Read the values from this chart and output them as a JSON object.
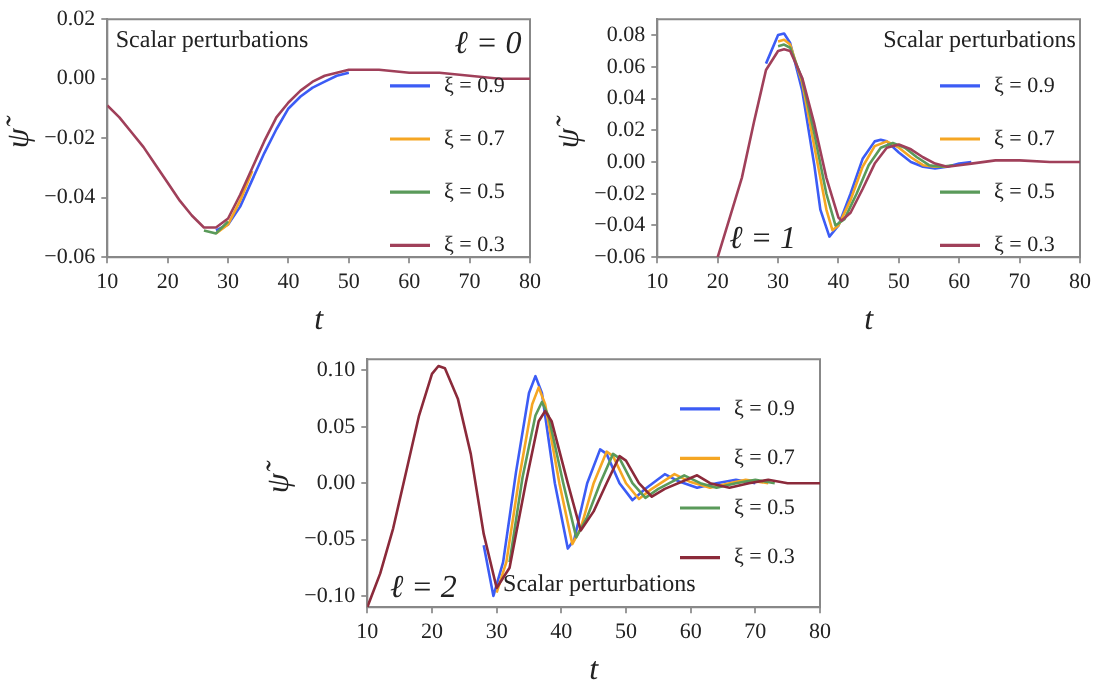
{
  "chart_data": [
    {
      "type": "line",
      "xlabel": "t",
      "ylabel": "ψ̃",
      "annotations": [
        "Scalar perturbations",
        "ℓ = 0"
      ],
      "legend": "right",
      "grid": false,
      "xlim": [
        10,
        80
      ],
      "xticks": [
        10,
        20,
        30,
        40,
        50,
        60,
        70,
        80
      ],
      "ylim": [
        -0.06,
        0.02
      ],
      "yticks": [
        {
          "value": -0.06,
          "label": "−0.06"
        },
        {
          "value": -0.04,
          "label": "−0.04"
        },
        {
          "value": -0.02,
          "label": "−0.02"
        },
        {
          "value": 0,
          "label": "0.00"
        },
        {
          "value": 0.02,
          "label": "0.02"
        }
      ],
      "x": [
        10,
        12,
        14,
        16,
        18,
        20,
        22,
        24,
        26,
        28,
        30,
        32,
        34,
        36,
        38,
        40,
        42,
        44,
        46,
        48,
        50,
        55,
        60,
        65,
        70,
        75,
        80
      ],
      "series": [
        {
          "name": "ξ = 0.9",
          "color": "#3c5cf5",
          "values": [
            null,
            null,
            null,
            null,
            null,
            null,
            null,
            null,
            null,
            -0.051,
            -0.049,
            -0.043,
            -0.034,
            -0.025,
            -0.017,
            -0.01,
            -0.006,
            -0.003,
            -0.001,
            0.001,
            0.002,
            null,
            null,
            null,
            null,
            null,
            null
          ]
        },
        {
          "name": "ξ = 0.7",
          "color": "#f5a623",
          "values": [
            null,
            null,
            null,
            null,
            null,
            null,
            null,
            null,
            null,
            -0.052,
            -0.049,
            -0.041,
            -0.031,
            null,
            null,
            null,
            null,
            null,
            null,
            null,
            null,
            null,
            null,
            null,
            null,
            null,
            null
          ]
        },
        {
          "name": "ξ = 0.5",
          "color": "#5a9a5a",
          "values": [
            null,
            null,
            null,
            null,
            null,
            null,
            null,
            null,
            -0.051,
            -0.052,
            -0.048,
            null,
            null,
            null,
            null,
            null,
            null,
            null,
            null,
            null,
            null,
            null,
            null,
            null,
            null,
            null,
            null
          ]
        },
        {
          "name": "ξ = 0.3",
          "color": "#a0405a",
          "values": [
            -0.009,
            -0.013,
            -0.018,
            -0.023,
            -0.029,
            -0.035,
            -0.041,
            -0.046,
            -0.05,
            -0.05,
            -0.047,
            -0.039,
            -0.03,
            -0.021,
            -0.013,
            -0.008,
            -0.004,
            -0.001,
            0.001,
            0.002,
            0.003,
            0.003,
            0.002,
            0.002,
            0.001,
            0.0,
            0.0
          ]
        }
      ]
    },
    {
      "type": "line",
      "xlabel": "t",
      "ylabel": "ψ̃",
      "annotations": [
        "Scalar perturbations",
        "ℓ = 1"
      ],
      "legend": "right",
      "grid": false,
      "xlim": [
        10,
        80
      ],
      "xticks": [
        10,
        20,
        30,
        40,
        50,
        60,
        70,
        80
      ],
      "ylim": [
        -0.06,
        0.09
      ],
      "yticks": [
        {
          "value": -0.06,
          "label": "−0.06"
        },
        {
          "value": -0.04,
          "label": "−0.04"
        },
        {
          "value": -0.02,
          "label": "−0.02"
        },
        {
          "value": 0,
          "label": "0.00"
        },
        {
          "value": 0.02,
          "label": "0.02"
        },
        {
          "value": 0.04,
          "label": "0.04"
        },
        {
          "value": 0.06,
          "label": "0.06"
        },
        {
          "value": 0.08,
          "label": "0.08"
        }
      ],
      "series": [
        {
          "name": "ξ = 0.9",
          "color": "#3c5cf5",
          "x": [
            28,
            30,
            31,
            32,
            34,
            36,
            37,
            38.5,
            40,
            42,
            44,
            46,
            47,
            48,
            50,
            52,
            54,
            56,
            58,
            60,
            62
          ],
          "values": [
            0.062,
            0.08,
            0.081,
            0.075,
            0.045,
            -0.002,
            -0.03,
            -0.047,
            -0.04,
            -0.02,
            0.002,
            0.013,
            0.014,
            0.013,
            0.006,
            0.0,
            -0.003,
            -0.004,
            -0.003,
            -0.001,
            0.0
          ]
        },
        {
          "name": "ξ = 0.7",
          "color": "#f5a623",
          "x": [
            30,
            31,
            32,
            34,
            36,
            38,
            39,
            40,
            42,
            44,
            46,
            48,
            50,
            52,
            54,
            56,
            58
          ],
          "values": [
            0.076,
            0.077,
            0.074,
            0.05,
            0.01,
            -0.03,
            -0.043,
            -0.04,
            -0.024,
            -0.003,
            0.01,
            0.013,
            0.009,
            0.003,
            -0.002,
            -0.003,
            -0.003
          ]
        },
        {
          "name": "ξ = 0.5",
          "color": "#5a9a5a",
          "x": [
            30,
            31,
            32,
            34,
            36,
            38,
            39.5,
            41,
            43,
            45,
            47,
            49,
            51,
            53,
            55,
            57,
            59
          ],
          "values": [
            0.073,
            0.074,
            0.072,
            0.052,
            0.018,
            -0.02,
            -0.04,
            -0.036,
            -0.02,
            -0.002,
            0.009,
            0.012,
            0.009,
            0.003,
            -0.002,
            -0.003,
            -0.002
          ]
        },
        {
          "name": "ξ = 0.3",
          "color": "#a0405a",
          "x": [
            20,
            22,
            24,
            26,
            28,
            30,
            31,
            32,
            34,
            36,
            38,
            40,
            40.5,
            42,
            44,
            46,
            48,
            50,
            52,
            54,
            56,
            58,
            60,
            62,
            66,
            70,
            75,
            80
          ],
          "values": [
            -0.06,
            -0.035,
            -0.01,
            0.025,
            0.058,
            0.07,
            0.071,
            0.07,
            0.053,
            0.024,
            -0.01,
            -0.035,
            -0.037,
            -0.032,
            -0.017,
            -0.001,
            0.009,
            0.011,
            0.008,
            0.003,
            -0.001,
            -0.003,
            -0.002,
            -0.001,
            0.001,
            0.001,
            0.0,
            0.0
          ]
        }
      ]
    },
    {
      "type": "line",
      "xlabel": "t",
      "ylabel": "ψ̃",
      "annotations": [
        "ℓ = 2",
        "Scalar perturbations"
      ],
      "legend": "right",
      "grid": false,
      "xlim": [
        10,
        80
      ],
      "xticks": [
        10,
        20,
        30,
        40,
        50,
        60,
        70,
        80
      ],
      "ylim": [
        -0.11,
        0.11
      ],
      "yticks": [
        {
          "value": -0.1,
          "label": "−0.10"
        },
        {
          "value": -0.05,
          "label": "−0.05"
        },
        {
          "value": 0,
          "label": "0.00"
        },
        {
          "value": 0.05,
          "label": "0.05"
        },
        {
          "value": 0.1,
          "label": "0.10"
        }
      ],
      "series": [
        {
          "name": "ξ = 0.9",
          "color": "#3c5cf5",
          "x": [
            28,
            29.5,
            31,
            33,
            35,
            36,
            37,
            39,
            41,
            42,
            44,
            46,
            47,
            49,
            51,
            53,
            56,
            58,
            61,
            64,
            67,
            70
          ],
          "values": [
            -0.055,
            -0.1,
            -0.07,
            0.01,
            0.08,
            0.095,
            0.08,
            0.0,
            -0.058,
            -0.05,
            0.0,
            0.03,
            0.026,
            0.0,
            -0.015,
            -0.005,
            0.008,
            0.002,
            -0.004,
            0.0,
            0.003,
            0.0
          ]
        },
        {
          "name": "ξ = 0.7",
          "color": "#f5a623",
          "x": [
            30,
            31.5,
            33.5,
            35.5,
            36.5,
            37.5,
            39.7,
            41.7,
            43,
            45,
            47,
            48,
            50,
            52,
            54,
            57.5,
            60,
            63,
            66,
            68.5,
            72
          ],
          "values": [
            -0.097,
            -0.07,
            0.005,
            0.07,
            0.085,
            0.07,
            0.0,
            -0.054,
            -0.04,
            0.0,
            0.028,
            0.024,
            0.0,
            -0.014,
            -0.005,
            0.008,
            0.001,
            -0.004,
            0.0,
            0.003,
            0.0
          ]
        },
        {
          "name": "ξ = 0.5",
          "color": "#5a9a5a",
          "x": [
            32,
            34,
            36,
            37,
            38,
            40.3,
            42.3,
            44,
            46,
            48,
            49,
            51,
            53,
            55,
            59,
            61.5,
            64,
            67,
            70,
            73
          ],
          "values": [
            -0.07,
            0.005,
            0.06,
            0.072,
            0.06,
            0.0,
            -0.048,
            -0.03,
            0.0,
            0.026,
            0.022,
            0.0,
            -0.013,
            -0.005,
            0.007,
            0.0,
            -0.004,
            0.0,
            0.003,
            0.0
          ]
        },
        {
          "name": "ξ = 0.3",
          "color": "#8b2a3a",
          "x": [
            10,
            12,
            14,
            16,
            18,
            20,
            21,
            22,
            24,
            26,
            28,
            30,
            32,
            34.5,
            36.5,
            37.5,
            38.5,
            41,
            43,
            45,
            47,
            49,
            50,
            52,
            54,
            56,
            61,
            63,
            66,
            69,
            72,
            75,
            80
          ],
          "values": [
            -0.11,
            -0.08,
            -0.04,
            0.01,
            0.06,
            0.097,
            0.104,
            0.102,
            0.075,
            0.026,
            -0.045,
            -0.093,
            -0.075,
            0.0,
            0.055,
            0.064,
            0.055,
            0.0,
            -0.042,
            -0.025,
            0.0,
            0.024,
            0.02,
            0.0,
            -0.012,
            -0.005,
            0.007,
            0.0,
            -0.004,
            0.0,
            0.003,
            0.0,
            0.0
          ]
        }
      ]
    }
  ]
}
